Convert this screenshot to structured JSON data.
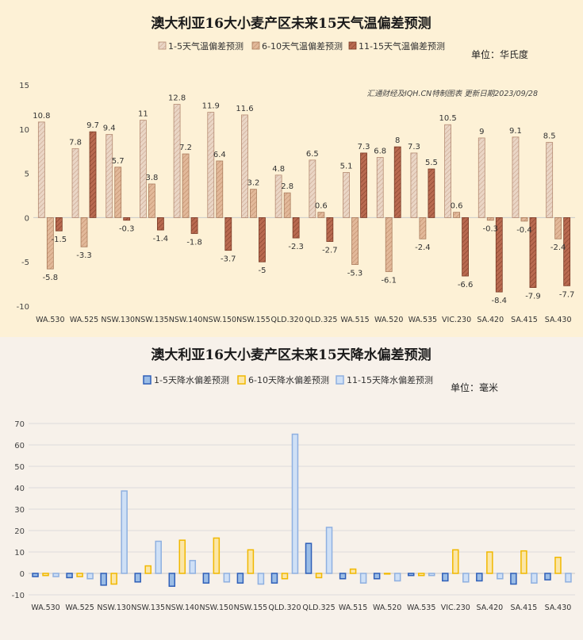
{
  "colors": {
    "panel1_bg": "#fdf1d6",
    "panel2_bg": "#f7f1ea",
    "grid": "#dddddd",
    "t1_fill": "#ead6c6",
    "t1_stroke": "#b48a72",
    "t2_fill": "#e2b99a",
    "t2_stroke": "#a97b5c",
    "t3_fill": "#b96a50",
    "t3_stroke": "#7a3a25",
    "p1_fill": "#9bbde6",
    "p1_stroke": "#2f5fb8",
    "p2_fill": "#fbe6a8",
    "p2_stroke": "#f1b800",
    "p3_fill": "#cfe0f6",
    "p3_stroke": "#8fb0e0"
  },
  "chart_data": [
    {
      "type": "bar",
      "title": "澳大利亚16大小麦产区未来15天气温偏差预测",
      "unit": "单位：华氏度",
      "note": "汇通财经及IQH.CN特制图表 更新日期2023/09/28",
      "categories": [
        "WA.530",
        "WA.525",
        "NSW.130",
        "NSW.135",
        "NSW.140",
        "NSW.150",
        "NSW.155",
        "QLD.320",
        "QLD.325",
        "WA.515",
        "WA.520",
        "WA.535",
        "VIC.230",
        "SA.420",
        "SA.415",
        "SA.430"
      ],
      "ylim": [
        -10,
        15
      ],
      "yticks": [
        -10,
        -5,
        0,
        5,
        10,
        15
      ],
      "legend_position": "top",
      "series": [
        {
          "name": "1-5天气温偏差预测",
          "values": [
            10.8,
            7.8,
            9.4,
            11,
            12.8,
            11.9,
            11.6,
            4.8,
            6.5,
            5.1,
            6.8,
            7.3,
            10.5,
            9,
            9.1,
            8.5
          ]
        },
        {
          "name": "6-10天气温偏差预测",
          "values": [
            -5.8,
            -3.3,
            5.7,
            3.8,
            7.2,
            6.4,
            3.2,
            2.8,
            0.6,
            -5.3,
            -6.1,
            -2.4,
            0.6,
            -0.3,
            -0.4,
            -2.4
          ]
        },
        {
          "name": "11-15天气温偏差预测",
          "values": [
            -1.5,
            9.7,
            -0.3,
            -1.4,
            -1.8,
            -3.7,
            -5,
            -2.3,
            -2.7,
            7.3,
            8,
            5.5,
            -6.6,
            -8.4,
            -7.9,
            -7.7
          ]
        }
      ]
    },
    {
      "type": "bar",
      "title": "澳大利亚16大小麦产区未来15天降水偏差预测",
      "unit": "单位：毫米",
      "categories": [
        "WA.530",
        "WA.525",
        "NSW.130",
        "NSW.135",
        "NSW.140",
        "NSW.150",
        "NSW.155",
        "QLD.320",
        "QLD.325",
        "WA.515",
        "WA.520",
        "WA.535",
        "VIC.230",
        "SA.420",
        "SA.415",
        "SA.430"
      ],
      "ylim": [
        -10,
        70
      ],
      "yticks": [
        -10,
        0,
        10,
        20,
        30,
        40,
        50,
        60,
        70
      ],
      "legend_position": "top",
      "series": [
        {
          "name": "1-5天降水偏差预测",
          "values": [
            -1.5,
            -2,
            -5.5,
            -4,
            -6,
            -4.5,
            -4.5,
            -4.5,
            14,
            -2.5,
            -2.5,
            -1,
            -3.5,
            -3.5,
            -5,
            -3
          ]
        },
        {
          "name": "6-10天降水偏差预测",
          "values": [
            -1,
            -1.5,
            -5,
            3.5,
            15.5,
            16.5,
            11,
            -2.5,
            -2,
            2,
            0,
            -1,
            11,
            10,
            10.5,
            7.5
          ]
        },
        {
          "name": "11-15天降水偏差预测",
          "values": [
            -1.5,
            -2.5,
            38.5,
            15,
            6,
            -4,
            -5,
            65,
            21.5,
            -4.5,
            -3.5,
            -1,
            -4,
            -2.5,
            -4.5,
            -4
          ]
        }
      ]
    }
  ]
}
